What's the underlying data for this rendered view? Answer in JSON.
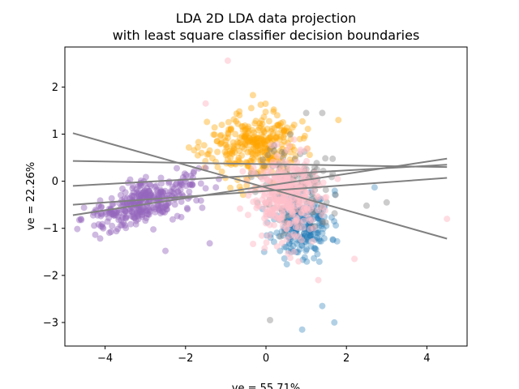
{
  "chart_data": {
    "type": "scatter",
    "title_line1": "LDA 2D LDA data projection",
    "title_line2": "with least square classifier decision boundaries",
    "xlabel": "ve = 55.71%",
    "ylabel": "ve = 22.26%",
    "xlim": [
      -5.0,
      5.0
    ],
    "ylim": [
      -3.5,
      2.85
    ],
    "xticks": [
      -4,
      -2,
      0,
      2,
      4
    ],
    "yticks": [
      -3,
      -2,
      -1,
      0,
      1,
      2
    ],
    "grid": false,
    "series": [
      {
        "color": "#1f77b4",
        "alpha": 0.35,
        "cx": 0.9,
        "cy": -0.9,
        "sx": 0.35,
        "sy": 0.35,
        "n": 260,
        "seed": 11,
        "outliers": [
          [
            2.7,
            -0.13
          ],
          [
            1.7,
            -3.0
          ],
          [
            0.9,
            -3.15
          ],
          [
            1.4,
            -2.65
          ]
        ]
      },
      {
        "color": "#ffa500",
        "alpha": 0.4,
        "cx": -0.3,
        "cy": 0.75,
        "sx": 0.55,
        "sy": 0.35,
        "n": 320,
        "seed": 23,
        "outliers": [
          [
            1.8,
            1.3
          ],
          [
            -1.2,
            0.3
          ],
          [
            -1.6,
            0.6
          ]
        ]
      },
      {
        "color": "#808080",
        "alpha": 0.4,
        "cx": 0.7,
        "cy": -0.1,
        "sx": 0.45,
        "sy": 0.45,
        "n": 140,
        "seed": 37,
        "outliers": [
          [
            0.1,
            -2.95
          ],
          [
            3.0,
            -0.45
          ],
          [
            2.5,
            -0.52
          ],
          [
            1.0,
            1.45
          ],
          [
            1.4,
            1.45
          ]
        ]
      },
      {
        "color": "#9467bd",
        "alpha": 0.45,
        "cx": -3.0,
        "cy": -0.45,
        "sx": 0.7,
        "sy": 0.22,
        "n": 330,
        "seed": 41,
        "slope": 0.28,
        "outliers": [
          [
            -2.5,
            -1.48
          ],
          [
            -1.4,
            -1.32
          ],
          [
            -4.6,
            -0.8
          ]
        ]
      },
      {
        "color": "#ffc0cb",
        "alpha": 0.55,
        "cx": 0.55,
        "cy": -0.35,
        "sx": 0.45,
        "sy": 0.45,
        "n": 330,
        "seed": 53,
        "outliers": [
          [
            -0.95,
            2.56
          ],
          [
            4.5,
            -0.8
          ],
          [
            1.3,
            -2.1
          ],
          [
            2.2,
            -1.65
          ],
          [
            -1.5,
            1.65
          ]
        ]
      }
    ],
    "boundaries": [
      {
        "x": [
          -4.8,
          4.5
        ],
        "y": [
          1.02,
          -1.22
        ]
      },
      {
        "x": [
          -4.8,
          4.5
        ],
        "y": [
          0.43,
          0.3
        ]
      },
      {
        "x": [
          -4.8,
          4.5
        ],
        "y": [
          -0.1,
          0.35
        ]
      },
      {
        "x": [
          -4.8,
          4.5
        ],
        "y": [
          -0.5,
          0.07
        ]
      },
      {
        "x": [
          -4.8,
          4.5
        ],
        "y": [
          -0.72,
          0.48
        ]
      }
    ],
    "boundary_color": "#808080"
  }
}
